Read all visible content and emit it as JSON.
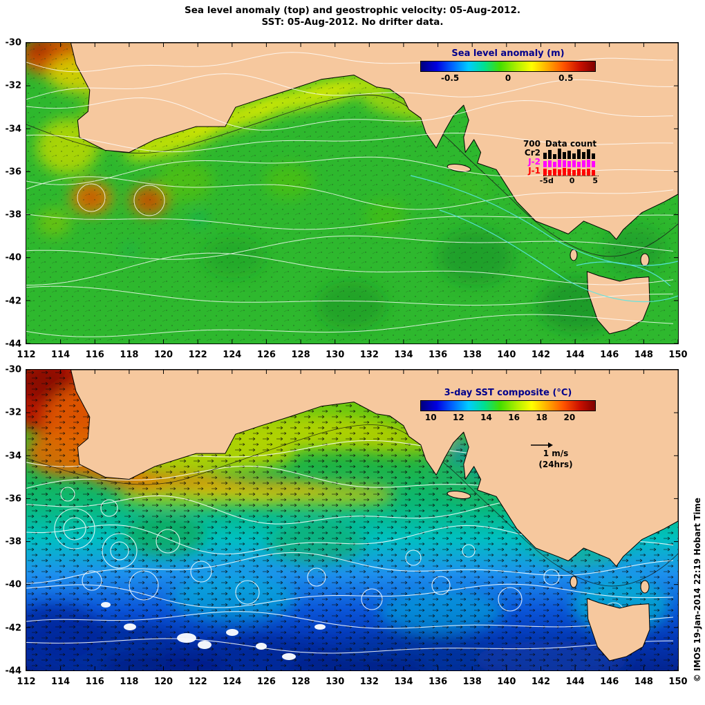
{
  "title": {
    "line1": "Sea level anomaly (top) and geostrophic velocity: 05-Aug-2012.",
    "line2": "SST: 05-Aug-2012. No drifter data."
  },
  "axes": {
    "x_ticks": [
      "112",
      "114",
      "116",
      "118",
      "120",
      "122",
      "124",
      "126",
      "128",
      "130",
      "132",
      "134",
      "136",
      "138",
      "140",
      "142",
      "144",
      "146",
      "148",
      "150"
    ],
    "y_ticks": [
      "-30",
      "-32",
      "-34",
      "-36",
      "-38",
      "-40",
      "-42",
      "-44"
    ]
  },
  "sla_panel": {
    "colorbar": {
      "title": "Sea level anomaly (m)",
      "ticks": [
        "-0.5",
        "0",
        "0.5"
      ]
    },
    "data_count": {
      "title": "Data count",
      "max_label": "700",
      "rows": [
        {
          "label": "Cr2",
          "color": "#000000",
          "values": [
            0.55,
            0.8,
            0.45,
            0.95,
            0.6,
            0.75,
            0.5,
            0.85,
            0.65,
            0.9,
            0.5
          ]
        },
        {
          "label": "J-2",
          "color": "#ff00ff",
          "values": [
            0.75,
            0.85,
            0.7,
            0.9,
            0.8,
            0.75,
            0.85,
            0.7,
            0.8,
            0.9,
            0.75
          ]
        },
        {
          "label": "J-1",
          "color": "#ff0000",
          "values": [
            0.8,
            0.7,
            0.85,
            0.75,
            0.9,
            0.8,
            0.7,
            0.85,
            0.75,
            0.8,
            0.7
          ]
        }
      ],
      "x_ticks": [
        "-5d",
        "0",
        "5"
      ]
    }
  },
  "sst_panel": {
    "colorbar": {
      "title": "3-day SST composite (°C)",
      "ticks": [
        "10",
        "12",
        "14",
        "16",
        "18",
        "20"
      ]
    },
    "velocity_key": {
      "scale": "1 m/s",
      "window": "(24hrs)"
    }
  },
  "credit": "© IMOS 19-Jan-2014 22:19 Hobart Time",
  "colors": {
    "land": "#f6c89e",
    "ocean_green": "#2eb82e",
    "j2_magenta": "#ff00ff",
    "j1_red": "#ff0000",
    "colorbar_title_navy": "#00008b"
  },
  "chart_data": [
    {
      "type": "heatmap",
      "panel": "sea_level_anomaly",
      "title": "Sea level anomaly (top) and geostrophic velocity: 05-Aug-2012.",
      "x_axis": {
        "range": [
          112,
          150
        ],
        "tick_step": 2,
        "ticks": [
          112,
          114,
          116,
          118,
          120,
          122,
          124,
          126,
          128,
          130,
          132,
          134,
          136,
          138,
          140,
          142,
          144,
          146,
          148,
          150
        ]
      },
      "y_axis": {
        "range": [
          -44,
          -30
        ],
        "tick_step": 2,
        "ticks": [
          -30,
          -32,
          -34,
          -36,
          -38,
          -40,
          -42,
          -44
        ]
      },
      "colorbar": {
        "label": "Sea level anomaly (m)",
        "tick_values": [
          -0.5,
          0,
          0.5
        ],
        "palette": "blue-cyan-green-yellow-orange-darkred"
      },
      "overlays": [
        "geostrophic velocity vectors",
        "white sea-level contours",
        "cyan shelf contours",
        "black coastline"
      ],
      "region": "Southern Australia, Great Australian Bight and Tasmania"
    },
    {
      "type": "heatmap",
      "panel": "sst",
      "title": "SST: 05-Aug-2012. No drifter data.",
      "x_axis": {
        "range": [
          112,
          150
        ],
        "tick_step": 2
      },
      "y_axis": {
        "range": [
          -44,
          -30
        ],
        "tick_step": 2
      },
      "colorbar": {
        "label": "3-day SST composite (°C)",
        "tick_values": [
          10,
          12,
          14,
          16,
          18,
          20
        ]
      },
      "velocity_scale": {
        "value": "1 m/s",
        "window": "(24hrs)"
      },
      "overlays": [
        "current velocity arrows",
        "white SST contours",
        "black coastline"
      ],
      "notes": "Warm (>20°C) water in northwest corner, cold (<10°C) water in the south"
    },
    {
      "type": "bar",
      "panel": "data_count_inset",
      "title": "Data count",
      "x_ticks": [
        "-5d",
        "0",
        "5"
      ],
      "y_max_label": "700",
      "series": [
        {
          "name": "Cr2",
          "color": "#000000",
          "values": [
            0.55,
            0.8,
            0.45,
            0.95,
            0.6,
            0.75,
            0.5,
            0.85,
            0.65,
            0.9,
            0.5
          ]
        },
        {
          "name": "J-2",
          "color": "#ff00ff",
          "values": [
            0.75,
            0.85,
            0.7,
            0.9,
            0.8,
            0.75,
            0.85,
            0.7,
            0.8,
            0.9,
            0.75
          ]
        },
        {
          "name": "J-1",
          "color": "#ff0000",
          "values": [
            0.8,
            0.7,
            0.85,
            0.75,
            0.9,
            0.8,
            0.7,
            0.85,
            0.75,
            0.8,
            0.7
          ]
        }
      ]
    }
  ]
}
